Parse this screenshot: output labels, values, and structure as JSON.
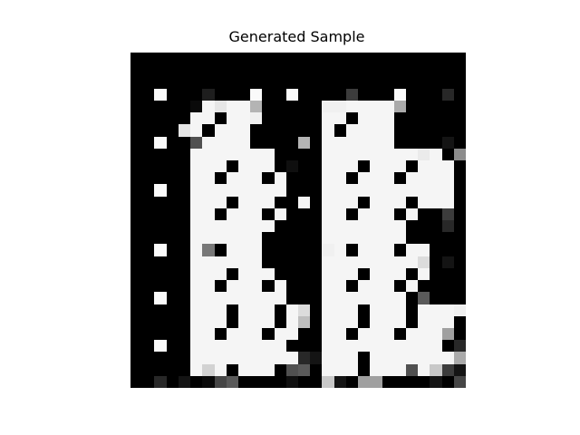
{
  "figure": {
    "title": "Generated Sample"
  },
  "image": {
    "grid_size": 28,
    "colormap": "gray",
    "pixels": [
      [
        0,
        0,
        0,
        0,
        0,
        0,
        0,
        0,
        0,
        0,
        0,
        0,
        0,
        0,
        0,
        0,
        0,
        0,
        0,
        0,
        0,
        0,
        0,
        0,
        0,
        0,
        0,
        0
      ],
      [
        0,
        0,
        0,
        0,
        0,
        0,
        0,
        0,
        0,
        0,
        0,
        0,
        0,
        0,
        0,
        0,
        0,
        0,
        0,
        0,
        0,
        0,
        0,
        0,
        0,
        0,
        0,
        0
      ],
      [
        0,
        0,
        0,
        0,
        0,
        0,
        0,
        0,
        0,
        0,
        0,
        0,
        0,
        0,
        0,
        0,
        0,
        0,
        0,
        0,
        0,
        0,
        0,
        0,
        0,
        0,
        0,
        0
      ],
      [
        0,
        0,
        250,
        0,
        0,
        0,
        30,
        0,
        0,
        0,
        250,
        0,
        0,
        250,
        0,
        0,
        0,
        0,
        60,
        0,
        0,
        0,
        250,
        0,
        0,
        0,
        40,
        0
      ],
      [
        0,
        0,
        0,
        0,
        0,
        10,
        245,
        230,
        245,
        245,
        180,
        0,
        0,
        0,
        0,
        0,
        240,
        240,
        245,
        245,
        245,
        245,
        170,
        0,
        0,
        0,
        0,
        0
      ],
      [
        0,
        0,
        0,
        0,
        0,
        245,
        245,
        0,
        245,
        245,
        240,
        0,
        0,
        0,
        0,
        0,
        245,
        245,
        0,
        245,
        245,
        245,
        0,
        0,
        0,
        0,
        0,
        0
      ],
      [
        0,
        0,
        0,
        0,
        230,
        245,
        0,
        245,
        245,
        245,
        0,
        0,
        0,
        0,
        0,
        0,
        245,
        0,
        245,
        245,
        245,
        245,
        0,
        0,
        0,
        0,
        0,
        0
      ],
      [
        0,
        0,
        250,
        0,
        0,
        80,
        245,
        245,
        245,
        245,
        0,
        0,
        0,
        0,
        180,
        0,
        245,
        245,
        245,
        245,
        245,
        245,
        0,
        0,
        0,
        0,
        20,
        0
      ],
      [
        0,
        0,
        0,
        0,
        0,
        245,
        245,
        245,
        245,
        245,
        245,
        245,
        0,
        0,
        0,
        0,
        245,
        245,
        245,
        245,
        245,
        245,
        245,
        245,
        235,
        245,
        0,
        140
      ],
      [
        0,
        0,
        0,
        0,
        0,
        245,
        245,
        245,
        0,
        245,
        245,
        245,
        0,
        15,
        0,
        0,
        245,
        245,
        245,
        0,
        245,
        245,
        245,
        0,
        245,
        245,
        245,
        0
      ],
      [
        0,
        0,
        0,
        0,
        0,
        245,
        245,
        0,
        245,
        245,
        245,
        0,
        245,
        0,
        0,
        0,
        245,
        245,
        0,
        245,
        245,
        245,
        0,
        245,
        245,
        245,
        245,
        0
      ],
      [
        0,
        0,
        250,
        0,
        0,
        245,
        245,
        245,
        245,
        245,
        245,
        245,
        245,
        0,
        0,
        0,
        245,
        245,
        245,
        245,
        245,
        245,
        245,
        245,
        245,
        245,
        245,
        0
      ],
      [
        0,
        0,
        0,
        0,
        0,
        245,
        245,
        245,
        0,
        245,
        245,
        245,
        0,
        0,
        245,
        0,
        245,
        245,
        245,
        0,
        245,
        245,
        245,
        0,
        245,
        245,
        245,
        0
      ],
      [
        0,
        0,
        0,
        0,
        0,
        245,
        245,
        0,
        245,
        245,
        245,
        0,
        245,
        0,
        0,
        0,
        245,
        245,
        0,
        245,
        245,
        245,
        0,
        245,
        0,
        0,
        60,
        0
      ],
      [
        0,
        0,
        0,
        0,
        0,
        245,
        245,
        245,
        245,
        245,
        245,
        245,
        0,
        0,
        0,
        0,
        245,
        245,
        245,
        245,
        245,
        245,
        245,
        0,
        0,
        0,
        40,
        0
      ],
      [
        0,
        0,
        0,
        0,
        0,
        245,
        245,
        245,
        245,
        245,
        245,
        0,
        0,
        0,
        0,
        0,
        245,
        245,
        245,
        245,
        245,
        245,
        245,
        0,
        0,
        0,
        0,
        0
      ],
      [
        0,
        0,
        250,
        0,
        0,
        245,
        120,
        0,
        245,
        245,
        245,
        0,
        0,
        0,
        0,
        0,
        240,
        245,
        0,
        245,
        245,
        245,
        0,
        245,
        245,
        0,
        0,
        0
      ],
      [
        0,
        0,
        0,
        0,
        0,
        245,
        245,
        245,
        245,
        245,
        245,
        0,
        0,
        0,
        0,
        0,
        245,
        245,
        245,
        245,
        245,
        245,
        245,
        245,
        220,
        0,
        20,
        0
      ],
      [
        0,
        0,
        0,
        0,
        0,
        245,
        245,
        245,
        0,
        245,
        245,
        245,
        0,
        0,
        0,
        0,
        245,
        245,
        245,
        0,
        245,
        245,
        245,
        0,
        245,
        0,
        0,
        0
      ],
      [
        0,
        0,
        0,
        0,
        0,
        245,
        245,
        0,
        245,
        245,
        245,
        0,
        245,
        0,
        0,
        0,
        245,
        245,
        0,
        245,
        245,
        245,
        0,
        245,
        0,
        0,
        0,
        0
      ],
      [
        0,
        0,
        250,
        0,
        0,
        245,
        245,
        245,
        245,
        245,
        245,
        245,
        245,
        0,
        0,
        0,
        245,
        245,
        245,
        245,
        245,
        245,
        245,
        0,
        90,
        0,
        0,
        0
      ],
      [
        0,
        0,
        0,
        0,
        0,
        245,
        245,
        245,
        0,
        245,
        245,
        245,
        0,
        245,
        220,
        0,
        245,
        245,
        245,
        0,
        245,
        245,
        245,
        0,
        245,
        245,
        245,
        240
      ],
      [
        0,
        0,
        0,
        0,
        0,
        245,
        245,
        245,
        0,
        245,
        245,
        245,
        0,
        245,
        190,
        0,
        245,
        245,
        245,
        0,
        245,
        245,
        245,
        0,
        245,
        245,
        245,
        0
      ],
      [
        0,
        0,
        0,
        0,
        0,
        245,
        245,
        0,
        245,
        245,
        245,
        0,
        245,
        245,
        0,
        0,
        245,
        245,
        0,
        245,
        245,
        245,
        0,
        245,
        245,
        245,
        160,
        0
      ],
      [
        0,
        0,
        250,
        0,
        0,
        245,
        245,
        245,
        245,
        245,
        245,
        245,
        245,
        0,
        0,
        0,
        245,
        245,
        245,
        245,
        245,
        245,
        245,
        245,
        245,
        245,
        0,
        40
      ],
      [
        0,
        0,
        0,
        0,
        0,
        245,
        245,
        245,
        245,
        245,
        245,
        245,
        245,
        245,
        40,
        20,
        245,
        245,
        245,
        0,
        245,
        245,
        245,
        245,
        245,
        245,
        245,
        170
      ],
      [
        0,
        0,
        0,
        0,
        0,
        245,
        210,
        245,
        0,
        245,
        245,
        245,
        0,
        80,
        90,
        0,
        245,
        245,
        245,
        0,
        245,
        245,
        245,
        80,
        245,
        200,
        60,
        20
      ],
      [
        0,
        0,
        40,
        0,
        20,
        0,
        10,
        70,
        90,
        0,
        0,
        0,
        0,
        15,
        0,
        0,
        200,
        20,
        0,
        160,
        160,
        0,
        0,
        0,
        0,
        20,
        0,
        70
      ]
    ]
  }
}
